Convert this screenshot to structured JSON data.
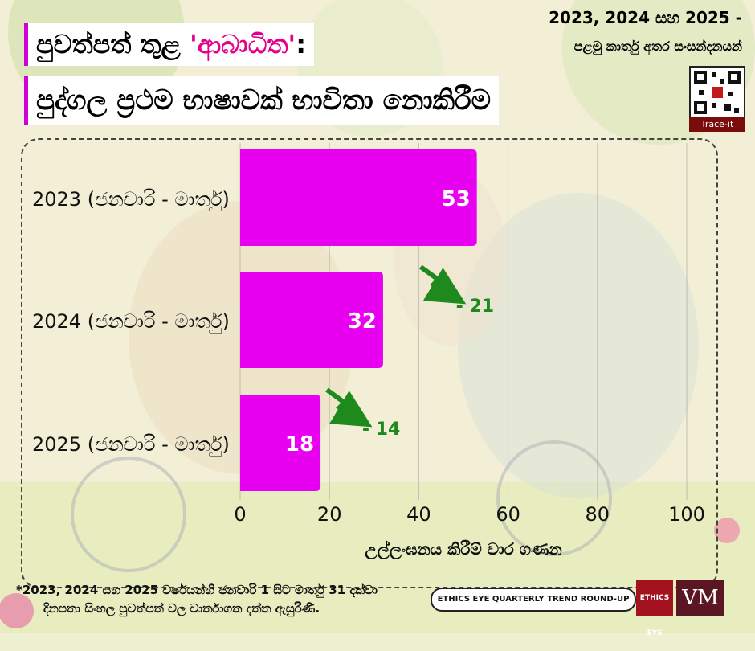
{
  "header": {
    "title_line1_before": "පුවත්පත් තුළ ",
    "title_line1_highlight": "'ආබාධිත'",
    "title_line1_after": ":",
    "title_line2": "පුද්ගල ප්‍රථම භාෂාවක් භාවිතා නොකිරීම",
    "subtitle_line1": "2023, 2024 සහ 2025 -",
    "subtitle_line2": "පළමු කාර්තු අතර සංසන්දනයන්",
    "trace_label": "Trace-it"
  },
  "chart_data": {
    "type": "bar",
    "orientation": "horizontal",
    "categories": [
      "2023 (ජනවාරි - මාර්තු)",
      "2024 (ජනවාරි - මාර්තු)",
      "2025 (ජනවාරි - මාර්තු)"
    ],
    "values": [
      53,
      32,
      18
    ],
    "changes": [
      null,
      "- 21",
      "- 14"
    ],
    "xlabel": "උල්ලංඝනය කිරීම් වාර ගණන",
    "xlim": [
      0,
      100
    ],
    "xticks": [
      0,
      20,
      40,
      60,
      80,
      100
    ],
    "grid": true,
    "bar_color": "#e800f0",
    "label_color": "#ffffff",
    "change_color": "#1e8a1e"
  },
  "footer": {
    "note_line1": "*2023, 2024 සහ 2025 වර්ෂයන්හි ජනවාරි 1 සිට මාර්තු 31 දක්වා",
    "note_line2": "දිනපතා සිංහල පුවත්පත් වල වාර්තාගත දත්ත ඇසුරිණි.",
    "brand_text": "ETHICS EYE QUARTERLY TREND ROUND-UP",
    "logo1_text": "ETHICS EYE",
    "logo2_text": "VM"
  }
}
